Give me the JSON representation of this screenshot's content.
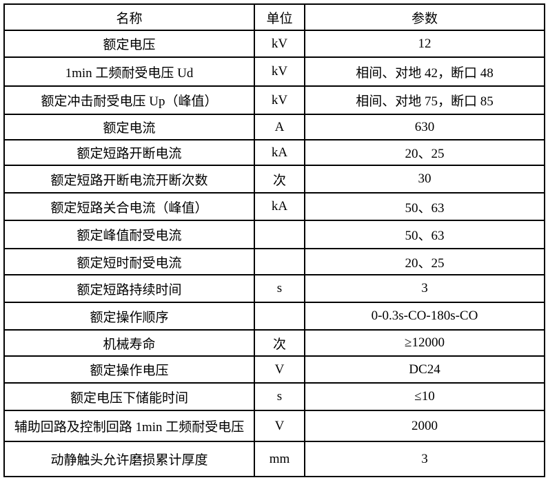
{
  "table": {
    "header": {
      "name": "名称",
      "unit": "单位",
      "value": "参数"
    },
    "rows": [
      {
        "name": "额定电压",
        "unit": "kV",
        "value": "12"
      },
      {
        "name": "1min 工频耐受电压 Ud",
        "unit": "kV",
        "value": "相间、对地 42，断口 48"
      },
      {
        "name": "额定冲击耐受电压 Up（峰值）",
        "unit": "kV",
        "value": "相间、对地 75，断口 85"
      },
      {
        "name": "额定电流",
        "unit": "A",
        "value": "630"
      },
      {
        "name": "额定短路开断电流",
        "unit": "kA",
        "value": "20、25"
      },
      {
        "name": "额定短路开断电流开断次数",
        "unit": "次",
        "value": "30"
      },
      {
        "name": "额定短路关合电流（峰值）",
        "unit": "kA",
        "value": "50、63"
      },
      {
        "name": "额定峰值耐受电流",
        "unit": "",
        "value": "50、63"
      },
      {
        "name": "额定短时耐受电流",
        "unit": "",
        "value": "20、25"
      },
      {
        "name": "额定短路持续时间",
        "unit": "s",
        "value": "3"
      },
      {
        "name": "额定操作顺序",
        "unit": "",
        "value": "0-0.3s-CO-180s-CO"
      },
      {
        "name": "机械寿命",
        "unit": "次",
        "value": "≥12000"
      },
      {
        "name": "额定操作电压",
        "unit": "V",
        "value": "DC24"
      },
      {
        "name": "额定电压下储能时间",
        "unit": "s",
        "value": "≤10"
      },
      {
        "name": "辅助回路及控制回路 1min 工频耐受电压",
        "unit": "V",
        "value": "2000"
      },
      {
        "name": "动静触头允许磨损累计厚度",
        "unit": "mm",
        "value": "3"
      }
    ],
    "border_color": "#000000",
    "text_color": "#000000",
    "background_color": "#ffffff"
  }
}
